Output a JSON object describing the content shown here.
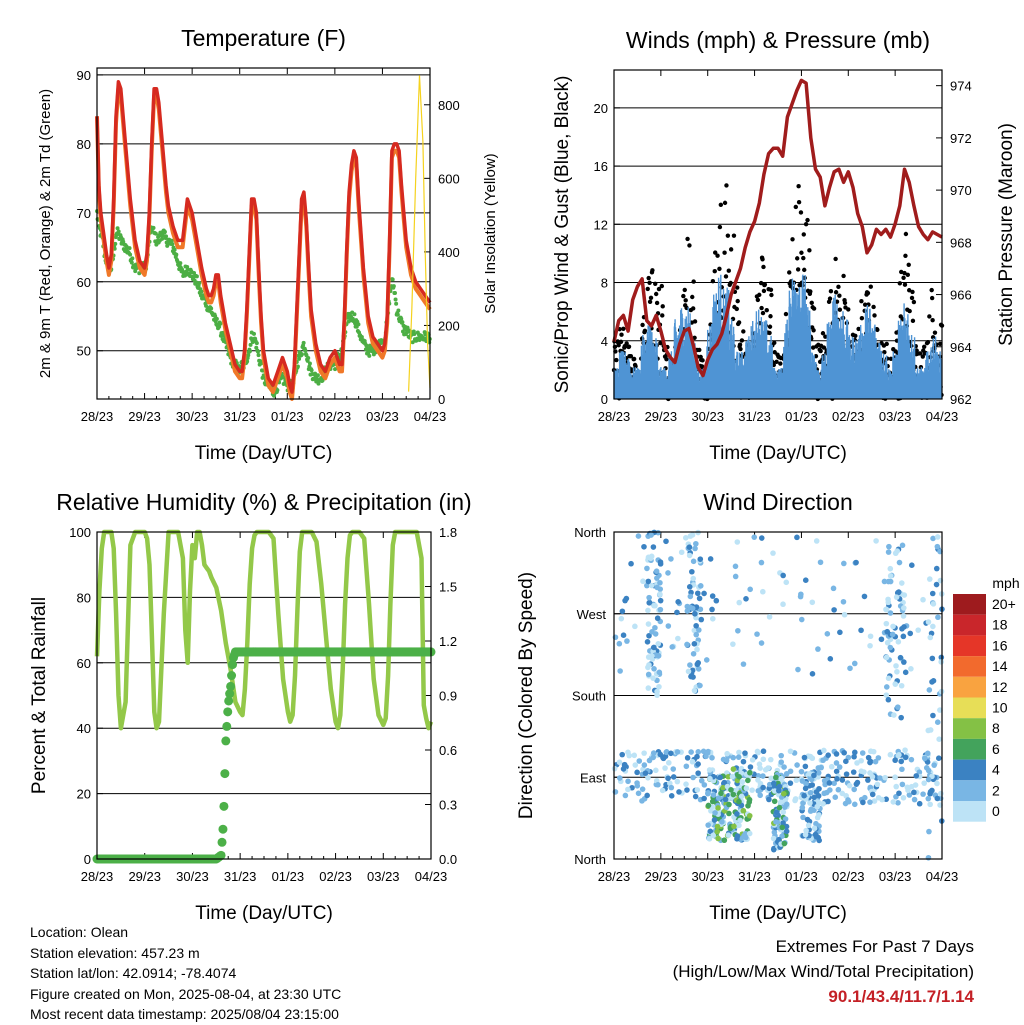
{
  "x_ticks": [
    "28/23",
    "29/23",
    "30/23",
    "31/23",
    "01/23",
    "02/23",
    "03/23",
    "04/23"
  ],
  "chart_data": [
    {
      "type": "line",
      "title": "Temperature (F)",
      "xlabel": "Time (Day/UTC)",
      "ylabel": "2m & 9m T (Red, Orange) & 2m Td (Green)",
      "y2label": "Solar Insolation (Yellow)",
      "ylim": [
        43,
        91
      ],
      "yticks": [
        50,
        60,
        70,
        80,
        90
      ],
      "y2lim": [
        0,
        900
      ],
      "y2ticks": [
        0,
        200,
        400,
        600,
        800
      ],
      "x": [
        0,
        0.04,
        0.08,
        0.12,
        0.16,
        0.2,
        0.25,
        0.3,
        0.35,
        0.4,
        0.45,
        0.5,
        0.6,
        0.7,
        0.8,
        0.9,
        1.0,
        1.05,
        1.1,
        1.15,
        1.2,
        1.25,
        1.3,
        1.35,
        1.4,
        1.45,
        1.5,
        1.6,
        1.7,
        1.8,
        1.9,
        2.0,
        2.1,
        2.2,
        2.3,
        2.35,
        2.4,
        2.45,
        2.5,
        2.55,
        2.6,
        2.65,
        2.7,
        2.8,
        2.9,
        3.0,
        3.05,
        3.1,
        3.15,
        3.2,
        3.25,
        3.3,
        3.35,
        3.4,
        3.45,
        3.5,
        3.6,
        3.7,
        3.8,
        3.9,
        4.0,
        4.05,
        4.1,
        4.15,
        4.2,
        4.25,
        4.3,
        4.35,
        4.4,
        4.45,
        4.5,
        4.6,
        4.7,
        4.8,
        4.9,
        5.0,
        5.05,
        5.1,
        5.15,
        5.2,
        5.25,
        5.3,
        5.35,
        5.4,
        5.45,
        5.5,
        5.6,
        5.7,
        5.8,
        5.9,
        6.0,
        6.05,
        6.1,
        6.15,
        6.2,
        6.25,
        6.3,
        6.35,
        6.4,
        6.45,
        6.5,
        6.6,
        6.7,
        6.8,
        6.9,
        7.0
      ],
      "series": [
        {
          "name": "2m T",
          "color": "#d62a20",
          "values": [
            84,
            74,
            70,
            68,
            66,
            64,
            62,
            64,
            72,
            84,
            89,
            88,
            80,
            72,
            66,
            63,
            62,
            64,
            70,
            80,
            88,
            88,
            86,
            82,
            78,
            74,
            71,
            68,
            66,
            66,
            72,
            70,
            66,
            62,
            59,
            58,
            58,
            59,
            61,
            61,
            58,
            56,
            54,
            51,
            48,
            47,
            47,
            50,
            56,
            64,
            72,
            72,
            70,
            62,
            55,
            50,
            46,
            45,
            47,
            49,
            47,
            45,
            44,
            48,
            56,
            64,
            72,
            73,
            69,
            62,
            56,
            51,
            48,
            47,
            49,
            50,
            49,
            48,
            48,
            55,
            65,
            73,
            77,
            79,
            78,
            72,
            62,
            55,
            52,
            51,
            50,
            51,
            55,
            66,
            79,
            80,
            80,
            79,
            74,
            70,
            66,
            62,
            60,
            59,
            58,
            57
          ]
        },
        {
          "name": "9m T",
          "color": "#f07828",
          "values": [
            84,
            73,
            69,
            67,
            65,
            63,
            61,
            63,
            71,
            83,
            88,
            87,
            79,
            71,
            65,
            62,
            61,
            63,
            69,
            79,
            87,
            87,
            85,
            81,
            77,
            73,
            70,
            67,
            65,
            65,
            71,
            69,
            65,
            61,
            58,
            57,
            57,
            58,
            60,
            60,
            57,
            55,
            53,
            50,
            47,
            46,
            46,
            49,
            55,
            63,
            71,
            71,
            69,
            61,
            54,
            49,
            45,
            44,
            46,
            48,
            46,
            44,
            43,
            47,
            55,
            63,
            71,
            72,
            68,
            61,
            55,
            50,
            47,
            46,
            48,
            49,
            48,
            47,
            47,
            54,
            64,
            72,
            76,
            78,
            77,
            71,
            61,
            54,
            51,
            50,
            49,
            50,
            54,
            65,
            78,
            79,
            79,
            78,
            73,
            69,
            65,
            61,
            59,
            58,
            57,
            56
          ]
        },
        {
          "name": "2m Td",
          "color": "#4cae44",
          "values": [
            70,
            68,
            67,
            66,
            64,
            63,
            62,
            62,
            64,
            67,
            67,
            66,
            65,
            64,
            62,
            62,
            62,
            63,
            66,
            68,
            67,
            66,
            66,
            67,
            67,
            66,
            66,
            65,
            63,
            61,
            62,
            61,
            60,
            58,
            57,
            56,
            56,
            55,
            54,
            54,
            53,
            52,
            51,
            49,
            48,
            47,
            48,
            48,
            49,
            50,
            52,
            52,
            51,
            49,
            48,
            46,
            45,
            44,
            45,
            46,
            45,
            45,
            44,
            46,
            48,
            49,
            50,
            51,
            50,
            48,
            47,
            46,
            46,
            47,
            48,
            48,
            49,
            49,
            50,
            52,
            54,
            55,
            55,
            55,
            54,
            53,
            51,
            50,
            50,
            51,
            51,
            52,
            54,
            58,
            60,
            59,
            56,
            55,
            54,
            53,
            53,
            52,
            52,
            52,
            52,
            52
          ]
        },
        {
          "name": "Solar Insolation",
          "color": "#f5d21e",
          "axis": "right",
          "values": [
            0,
            0,
            0,
            0,
            0,
            0,
            0,
            0,
            0,
            0,
            0,
            0,
            0,
            0,
            0,
            0,
            0,
            0,
            0,
            0,
            0,
            0,
            0,
            0,
            0,
            0,
            0,
            0,
            0,
            0,
            0,
            0,
            0,
            0,
            0,
            0,
            0,
            0,
            0,
            0,
            0,
            0,
            0,
            0,
            0,
            0,
            0,
            0,
            0,
            0,
            0,
            0,
            0,
            0,
            0,
            0,
            0,
            0,
            0,
            0,
            0,
            0,
            0,
            0,
            0,
            0,
            0,
            0,
            0,
            0,
            0,
            0,
            0,
            0,
            0,
            0,
            0,
            0,
            0,
            0,
            0,
            0,
            0,
            0,
            0,
            0,
            0,
            0,
            0,
            0,
            0,
            0,
            0,
            0,
            0,
            0,
            0,
            0,
            0,
            0,
            0,
            0,
            0,
            0,
            0,
            0
          ]
        }
      ],
      "insolation_x": [
        6.55,
        6.62,
        6.7,
        6.78,
        6.85,
        6.9,
        6.95,
        7.0
      ],
      "insolation_values": [
        20,
        250,
        600,
        880,
        700,
        400,
        150,
        30
      ]
    },
    {
      "type": "scatter",
      "title": "Winds (mph) & Pressure (mb)",
      "xlabel": "Time (Day/UTC)",
      "ylabel": "Sonic/Prop Wind & Gust (Blue, Black)",
      "y2label": "Station Pressure (Maroon)",
      "ylim": [
        0,
        22.6
      ],
      "yticks": [
        0,
        4,
        8,
        12,
        16,
        20
      ],
      "y2lim": [
        962,
        974.6
      ],
      "y2ticks": [
        962,
        964,
        966,
        968,
        970,
        972,
        974
      ],
      "pressure_color": "#a01c1c",
      "wind_color": "#4f94d4",
      "gust_color": "#000000",
      "wind_envelope": [
        2,
        3,
        3,
        2,
        2,
        4,
        5,
        4,
        2,
        2,
        3,
        5,
        6,
        6,
        4,
        2,
        2,
        5,
        7,
        8,
        7,
        5,
        3,
        3,
        4,
        5,
        6,
        5,
        4,
        2,
        2,
        5,
        8,
        9,
        8,
        6,
        3,
        2,
        3,
        5,
        7,
        6,
        5,
        4,
        4,
        5,
        6,
        5,
        4,
        3,
        2,
        3,
        5,
        6,
        4,
        2,
        2,
        3,
        4,
        3
      ],
      "gust_envelope": [
        4,
        5,
        4,
        3,
        3,
        6,
        9,
        10,
        8,
        4,
        3,
        5,
        8,
        12,
        9,
        4,
        3,
        6,
        11,
        14,
        15,
        12,
        8,
        5,
        4,
        6,
        8,
        10,
        8,
        4,
        3,
        6,
        12,
        16,
        15,
        13,
        8,
        4,
        5,
        8,
        10,
        9,
        7,
        5,
        5,
        7,
        8,
        7,
        5,
        4,
        3,
        5,
        9,
        12,
        8,
        4,
        4,
        6,
        8,
        6
      ],
      "pressure_x": [
        0,
        0.1,
        0.2,
        0.3,
        0.4,
        0.5,
        0.6,
        0.7,
        0.8,
        0.9,
        1.0,
        1.1,
        1.2,
        1.3,
        1.4,
        1.5,
        1.6,
        1.7,
        1.8,
        1.9,
        2.0,
        2.1,
        2.2,
        2.3,
        2.4,
        2.5,
        2.6,
        2.7,
        2.8,
        2.9,
        3.0,
        3.1,
        3.2,
        3.3,
        3.4,
        3.5,
        3.6,
        3.7,
        3.8,
        3.9,
        4.0,
        4.1,
        4.2,
        4.3,
        4.4,
        4.5,
        4.6,
        4.7,
        4.8,
        4.9,
        5.0,
        5.1,
        5.2,
        5.3,
        5.4,
        5.5,
        5.6,
        5.7,
        5.8,
        5.9,
        6.0,
        6.1,
        6.2,
        6.3,
        6.4,
        6.5,
        6.6,
        6.7,
        6.8,
        6.9,
        7.0
      ],
      "pressure_values": [
        964.2,
        965.0,
        965.2,
        964.6,
        965.8,
        966.3,
        966.6,
        965.0,
        964.8,
        965.2,
        964.6,
        963.9,
        963.6,
        963.4,
        964.1,
        964.6,
        964.7,
        964.0,
        963.2,
        962.9,
        963.5,
        963.9,
        964.1,
        964.5,
        965.2,
        966.0,
        966.5,
        967.0,
        967.8,
        968.4,
        968.8,
        969.5,
        970.6,
        971.4,
        971.6,
        971.6,
        971.3,
        972.8,
        973.3,
        973.8,
        974.2,
        974.1,
        972.0,
        970.8,
        970.5,
        969.4,
        970.1,
        970.7,
        970.8,
        970.3,
        970.7,
        970.1,
        969.1,
        968.6,
        967.6,
        967.9,
        968.5,
        968.3,
        968.5,
        968.2,
        968.7,
        969.4,
        970.8,
        970.3,
        969.4,
        968.6,
        968.3,
        968.1,
        968.4,
        968.3,
        968.2
      ]
    },
    {
      "type": "line",
      "title": "Relative Humidity (%) & Precipitation (in)",
      "xlabel": "Time (Day/UTC)",
      "ylabel": "Percent & Total Rainfall",
      "ylim": [
        0,
        100
      ],
      "yticks": [
        0,
        20,
        40,
        60,
        80,
        100
      ],
      "y2lim": [
        0,
        1.8
      ],
      "y2ticks": [
        "0.0",
        "0.3",
        "0.6",
        "0.9",
        "1.2",
        "1.5",
        "1.8"
      ],
      "rh_color": "#93c849",
      "precip_color": "#4cb048",
      "rh_x": [
        0,
        0.05,
        0.1,
        0.15,
        0.2,
        0.25,
        0.3,
        0.35,
        0.4,
        0.45,
        0.5,
        0.6,
        0.7,
        0.8,
        0.9,
        1.0,
        1.05,
        1.1,
        1.15,
        1.2,
        1.25,
        1.3,
        1.4,
        1.5,
        1.6,
        1.7,
        1.8,
        1.85,
        1.9,
        1.95,
        2.0,
        2.05,
        2.1,
        2.15,
        2.2,
        2.25,
        2.3,
        2.35,
        2.4,
        2.5,
        2.6,
        2.7,
        2.8,
        2.9,
        3.0,
        3.05,
        3.1,
        3.15,
        3.2,
        3.25,
        3.3,
        3.35,
        3.4,
        3.5,
        3.6,
        3.7,
        3.8,
        3.9,
        4.0,
        4.05,
        4.1,
        4.15,
        4.2,
        4.25,
        4.3,
        4.35,
        4.4,
        4.5,
        4.6,
        4.7,
        4.8,
        4.9,
        5.0,
        5.05,
        5.1,
        5.15,
        5.2,
        5.25,
        5.3,
        5.35,
        5.4,
        5.5,
        5.6,
        5.7,
        5.8,
        5.9,
        6.0,
        6.05,
        6.1,
        6.15,
        6.2,
        6.25,
        6.3,
        6.35,
        6.4,
        6.5,
        6.6,
        6.7,
        6.8,
        6.85,
        6.9,
        6.95,
        7.0
      ],
      "rh_values": [
        62,
        82,
        95,
        100,
        100,
        100,
        100,
        95,
        75,
        50,
        40,
        48,
        96,
        100,
        100,
        100,
        98,
        90,
        68,
        45,
        40,
        42,
        75,
        100,
        100,
        100,
        92,
        70,
        60,
        82,
        96,
        92,
        100,
        100,
        96,
        90,
        89,
        88,
        86,
        83,
        76,
        66,
        58,
        48,
        45,
        44,
        52,
        66,
        84,
        95,
        99,
        100,
        100,
        100,
        100,
        98,
        75,
        55,
        45,
        42,
        44,
        56,
        76,
        94,
        100,
        100,
        100,
        100,
        97,
        84,
        68,
        52,
        42,
        40,
        44,
        58,
        78,
        92,
        99,
        100,
        100,
        100,
        98,
        78,
        55,
        44,
        41,
        43,
        56,
        78,
        96,
        100,
        100,
        100,
        100,
        100,
        100,
        100,
        92,
        47,
        43,
        40,
        42
      ],
      "precip_x": [
        0,
        2.5,
        2.6,
        2.65,
        2.7,
        2.75,
        2.8,
        2.85,
        2.9,
        7.0
      ],
      "precip_values": [
        0.0,
        0.0,
        0.02,
        0.2,
        0.65,
        0.85,
        0.95,
        1.1,
        1.14,
        1.14
      ]
    },
    {
      "type": "scatter",
      "title": "Wind Direction",
      "xlabel": "Time (Day/UTC)",
      "ylabel": "Direction (Colored By Speed)",
      "yticks": [
        "North",
        "East",
        "South",
        "West",
        "North"
      ],
      "ylim": [
        0,
        360
      ],
      "legend_title": "mph",
      "legend_labels": [
        "20+",
        "18",
        "16",
        "14",
        "12",
        "10",
        "8",
        "6",
        "4",
        "2",
        "0"
      ],
      "legend_colors": [
        "#9e1b1e",
        "#c9262b",
        "#e53628",
        "#f26a2d",
        "#f9a340",
        "#e7de57",
        "#84c145",
        "#43a35c",
        "#3b82c2",
        "#79b6e4",
        "#bde3f6"
      ]
    }
  ],
  "info": {
    "location": "Location: Olean",
    "elevation": "Station elevation: 457.23 m",
    "latlon": "Station lat/lon: 42.0914; -78.4074",
    "created": "Figure created on Mon, 2025-08-04, at 23:30 UTC",
    "recent": "Most recent data timestamp: 2025/08/04 23:15:00"
  },
  "extremes": {
    "title": "Extremes For Past 7 Days",
    "subtitle": "(High/Low/Max Wind/Total Precipitation)",
    "values": "90.1/43.4/11.7/1.14",
    "value_color": "#c42026"
  }
}
